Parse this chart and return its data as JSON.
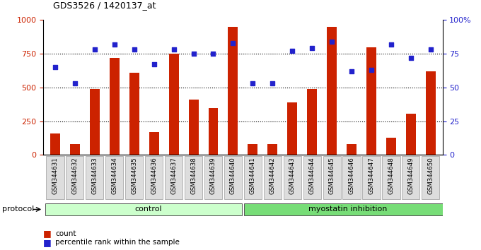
{
  "title": "GDS3526 / 1420137_at",
  "samples": [
    "GSM344631",
    "GSM344632",
    "GSM344633",
    "GSM344634",
    "GSM344635",
    "GSM344636",
    "GSM344637",
    "GSM344638",
    "GSM344639",
    "GSM344640",
    "GSM344641",
    "GSM344642",
    "GSM344643",
    "GSM344644",
    "GSM344645",
    "GSM344646",
    "GSM344647",
    "GSM344648",
    "GSM344649",
    "GSM344650"
  ],
  "counts": [
    160,
    80,
    490,
    720,
    610,
    170,
    750,
    410,
    350,
    950,
    80,
    80,
    390,
    490,
    950,
    80,
    800,
    130,
    305,
    620
  ],
  "percentile": [
    65,
    53,
    78,
    82,
    78,
    67,
    78,
    75,
    75,
    83,
    53,
    53,
    77,
    79,
    84,
    62,
    63,
    82,
    72,
    78
  ],
  "control_count": 10,
  "group_labels": [
    "control",
    "myostatin inhibition"
  ],
  "group_colors": [
    "#ccffcc",
    "#77dd77"
  ],
  "bar_color": "#cc2200",
  "dot_color": "#2222cc",
  "ylim_left": [
    0,
    1000
  ],
  "ylim_right": [
    0,
    100
  ],
  "yticks_left": [
    0,
    250,
    500,
    750,
    1000
  ],
  "yticks_right": [
    0,
    25,
    50,
    75,
    100
  ],
  "hlines": [
    250,
    500,
    750
  ],
  "legend_count_label": "count",
  "legend_pct_label": "percentile rank within the sample",
  "protocol_label": "protocol",
  "ylabel_left_color": "#cc2200",
  "ylabel_right_color": "#2222cc"
}
